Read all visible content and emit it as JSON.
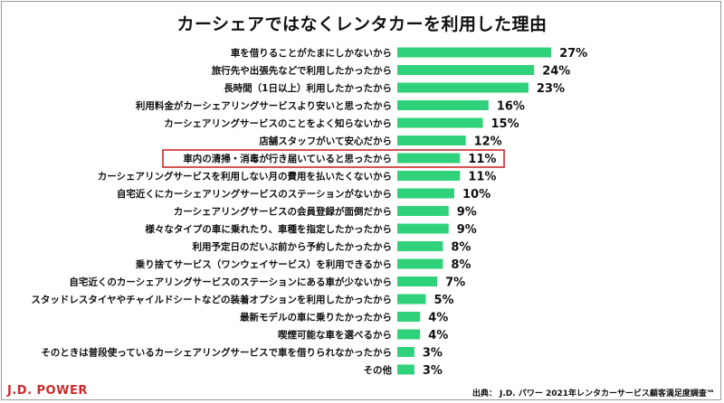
{
  "title": "カーシェアではなくレンタカーを利用した理由",
  "brand": "J.D. POWER",
  "source": "出典： J.D. パワー 2021年レンタカーサービス顧客満足度調査℠",
  "highlight_color": "#cc2a2a",
  "chart_data": {
    "type": "bar",
    "orientation": "horizontal",
    "title": "カーシェアではなくレンタカーを利用した理由",
    "bar_color": "#2fd27a",
    "xlim": [
      0,
      30
    ],
    "grid": false,
    "categories": [
      "車を借りることがたまにしかないから",
      "旅行先や出張先などで利用したかったから",
      "長時間（1日以上）利用したかったから",
      "利用料金がカーシェアリングサービスより安いと思ったから",
      "カーシェアリングサービスのことをよく知らないから",
      "店舗スタッフがいて安心だから",
      "車内の清掃・消毒が行き届いていると思ったから",
      "カーシェアリングサービスを利用しない月の費用を払いたくないから",
      "自宅近くにカーシェアリングサービスのステーションがないから",
      "カーシェアリングサービスの会員登録が面倒だから",
      "様々なタイプの車に乗れたり、車種を指定したかったから",
      "利用予定日のだいぶ前から予約したかったから",
      "乗り捨てサービス（ワンウェイサービス）を利用できるから",
      "自宅近くのカーシェアリングサービスのステーションにある車が少ないから",
      "スタッドレスタイヤやチャイルドシートなどの装着オプションを利用したかったから",
      "最新モデルの車に乗りたかったから",
      "喫煙可能な車を選べるから",
      "そのときは普段使っているカーシェアリングサービスで車を借りられなかったから",
      "その他"
    ],
    "values": [
      27,
      24,
      23,
      16,
      15,
      12,
      11,
      11,
      10,
      9,
      9,
      8,
      8,
      7,
      5,
      4,
      4,
      3,
      3
    ],
    "value_labels": [
      "27%",
      "24%",
      "23%",
      "16%",
      "15%",
      "12%",
      "11%",
      "11%",
      "10%",
      "9%",
      "9%",
      "8%",
      "8%",
      "7%",
      "5%",
      "4%",
      "4%",
      "3%",
      "3%"
    ],
    "highlighted_index": 6
  }
}
